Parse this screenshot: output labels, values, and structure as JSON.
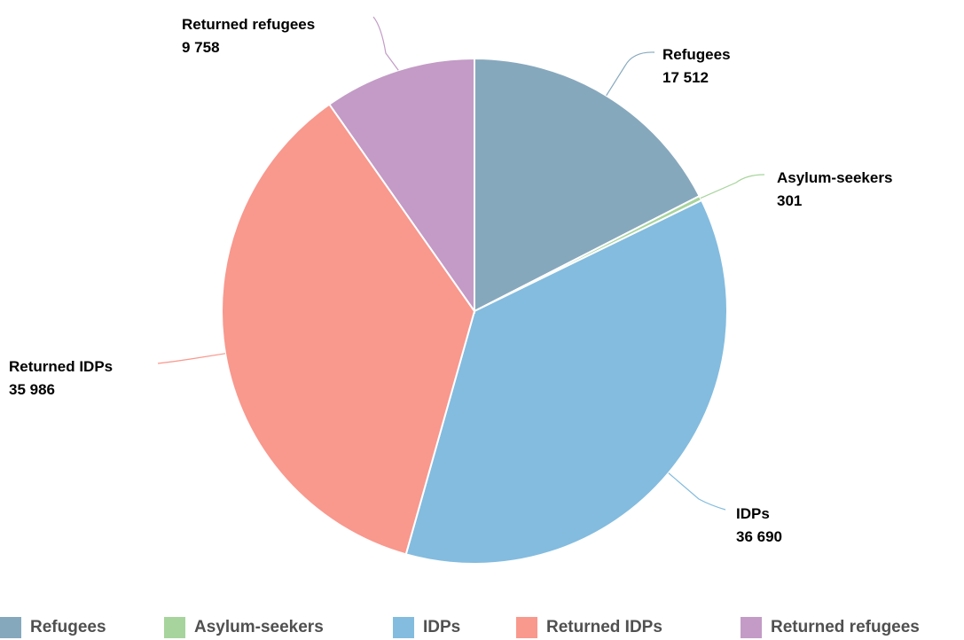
{
  "chart_data": {
    "type": "pie",
    "title": "",
    "categories": [
      "Refugees",
      "Asylum-seekers",
      "IDPs",
      "Returned IDPs",
      "Returned refugees"
    ],
    "values": [
      17512,
      301,
      36690,
      35986,
      9758
    ],
    "value_labels": [
      "17 512",
      "301",
      "36 690",
      "35 986",
      "9 758"
    ],
    "colors": [
      "#86a8bd",
      "#a7d49c",
      "#83bcdf",
      "#f9988d",
      "#c39bc6"
    ],
    "start_angle_deg": 0,
    "direction": "clockwise",
    "legend_position": "bottom"
  },
  "legend": {
    "items": [
      {
        "label": "Refugees",
        "color": "#86a8bd"
      },
      {
        "label": "Asylum-seekers",
        "color": "#a7d49c"
      },
      {
        "label": "IDPs",
        "color": "#83bcdf"
      },
      {
        "label": "Returned IDPs",
        "color": "#f9988d"
      },
      {
        "label": "Returned refugees",
        "color": "#c39bc6"
      }
    ]
  }
}
